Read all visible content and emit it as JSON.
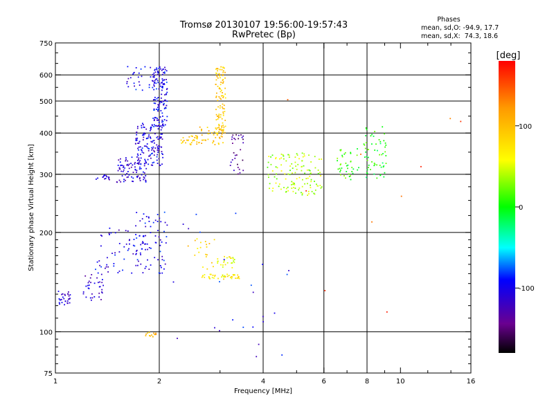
{
  "chart_data": {
    "type": "scatter",
    "title": "Tromsø 20130107 19:56:00-19:57:43",
    "subtitle": "RwPretec (Bp)",
    "stats": {
      "heading": "Phases",
      "o_line": "mean, sd,O: -94.9, 17.7",
      "x_line": "mean, sd,X:  74.3, 18.6"
    },
    "xlabel": "Frequency [MHz]",
    "ylabel": "Stationary phase Virtual Height [km]",
    "xscale": "log",
    "yscale": "log",
    "xlim": [
      1,
      16
    ],
    "ylim": [
      75,
      750
    ],
    "xticks": [
      1,
      2,
      4,
      6,
      8,
      10,
      16
    ],
    "yticks": [
      75,
      100,
      200,
      300,
      400,
      500,
      600,
      750
    ],
    "xgrid": [
      2,
      4,
      6,
      8
    ],
    "ygrid": [
      100,
      200,
      300,
      400,
      500,
      600
    ],
    "grid": true,
    "colorbar": {
      "label": "[deg]",
      "min": -180,
      "max": 180,
      "ticks": [
        100,
        0,
        -100
      ],
      "placement": "right"
    },
    "clusters": [
      {
        "f": [
          1.0,
          1.1
        ],
        "h": [
          120,
          135
        ],
        "phase": -110,
        "n": 30
      },
      {
        "f": [
          1.2,
          1.4
        ],
        "h": [
          125,
          150
        ],
        "phase": -115,
        "n": 35
      },
      {
        "f": [
          1.3,
          1.8
        ],
        "h": [
          150,
          210
        ],
        "phase": -105,
        "n": 60
      },
      {
        "f": [
          1.7,
          2.1
        ],
        "h": [
          150,
          235
        ],
        "phase": -100,
        "n": 70
      },
      {
        "f": [
          1.5,
          1.85
        ],
        "h": [
          285,
          340
        ],
        "phase": -110,
        "n": 90
      },
      {
        "f": [
          1.7,
          2.05
        ],
        "h": [
          320,
          430
        ],
        "phase": -105,
        "n": 140
      },
      {
        "f": [
          1.9,
          2.1
        ],
        "h": [
          420,
          640
        ],
        "phase": -100,
        "n": 150
      },
      {
        "f": [
          1.6,
          1.9
        ],
        "h": [
          540,
          640
        ],
        "phase": -100,
        "n": 25
      },
      {
        "f": [
          1.3,
          1.45
        ],
        "h": [
          290,
          300
        ],
        "phase": -115,
        "n": 15
      },
      {
        "f": [
          2.3,
          2.6
        ],
        "h": [
          370,
          395
        ],
        "phase": 95,
        "n": 30
      },
      {
        "f": [
          2.6,
          3.1
        ],
        "h": [
          370,
          420
        ],
        "phase": 100,
        "n": 40
      },
      {
        "f": [
          2.9,
          3.1
        ],
        "h": [
          400,
          640
        ],
        "phase": 90,
        "n": 110
      },
      {
        "f": [
          2.6,
          3.4
        ],
        "h": [
          145,
          150
        ],
        "phase": 70,
        "n": 45
      },
      {
        "f": [
          2.9,
          3.3
        ],
        "h": [
          155,
          170
        ],
        "phase": 60,
        "n": 25
      },
      {
        "f": [
          2.4,
          2.9
        ],
        "h": [
          155,
          195
        ],
        "phase": 85,
        "n": 20
      },
      {
        "f": [
          3.2,
          3.5
        ],
        "h": [
          300,
          400
        ],
        "phase": -135,
        "n": 30
      },
      {
        "f": [
          4.1,
          5.9
        ],
        "h": [
          260,
          350
        ],
        "phase": 40,
        "n": 130
      },
      {
        "f": [
          6.5,
          7.6
        ],
        "h": [
          290,
          360
        ],
        "phase": 10,
        "n": 40
      },
      {
        "f": [
          7.8,
          9.1
        ],
        "h": [
          290,
          420
        ],
        "phase": 0,
        "n": 60
      },
      {
        "f": [
          1.8,
          1.95
        ],
        "h": [
          97,
          100
        ],
        "phase": 110,
        "n": 14
      },
      {
        "f": [
          2.1,
          5.0
        ],
        "h": [
          80,
          230
        ],
        "phase": -100,
        "n": 25
      },
      {
        "f": [
          4.0,
          15.0
        ],
        "h": [
          110,
          600
        ],
        "phase": 150,
        "n": 10
      }
    ]
  }
}
